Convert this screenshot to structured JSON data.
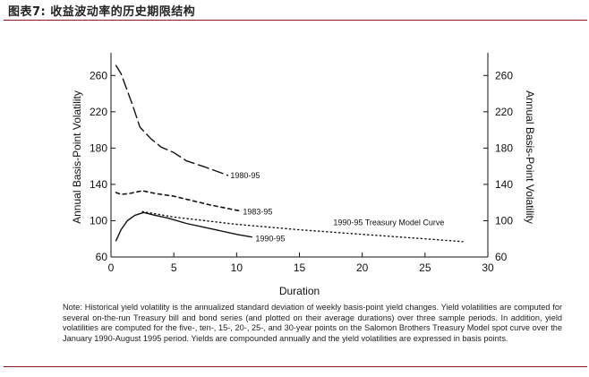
{
  "figure": {
    "title": "图表7:   收益波动率的历史期限结构",
    "note": "Note: Historical yield volatility is the annualized standard deviation of weekly basis-point yield changes. Yield volatilities are computed for several on-the-run Treasury bill and bond series (and plotted on their average durations) over three sample periods. In addition, yield volatilities are computed for the five-, ten-, 15-, 20-, 25-, and 30-year points on the Salomon Brothers Treasury Model spot curve over the January 1990-August 1995 period. Yields are compounded annually and the yield volatilities are expressed in basis points."
  },
  "chart_data": {
    "type": "line",
    "xlabel": "Duration",
    "ylabel_left": "Annual Basis-Point Volatility",
    "ylabel_right": "Annual Basis-Point Volatility",
    "xlim": [
      0,
      30
    ],
    "ylim": [
      60,
      280
    ],
    "x_ticks": [
      0,
      5,
      10,
      15,
      20,
      25,
      30
    ],
    "y_ticks": [
      60,
      100,
      140,
      180,
      220,
      260
    ],
    "series": [
      {
        "name": "1980-95",
        "style": "long-dash",
        "x": [
          0.4,
          0.8,
          1.2,
          1.7,
          2.3,
          3.2,
          4.0,
          5.0,
          6.0,
          7.5,
          9.3
        ],
        "y": [
          271,
          262,
          247,
          228,
          203,
          190,
          181,
          175,
          166,
          159,
          150
        ]
      },
      {
        "name": "1983-95",
        "style": "short-dash",
        "x": [
          0.4,
          0.8,
          1.5,
          2.5,
          3.5,
          5.0,
          6.5,
          8.0,
          10.2
        ],
        "y": [
          131,
          129,
          130,
          133,
          130,
          127,
          122,
          117,
          111
        ]
      },
      {
        "name": "1990-95",
        "style": "solid",
        "x": [
          0.4,
          0.8,
          1.3,
          1.9,
          2.6,
          3.5,
          4.5,
          6.0,
          8.0,
          10.0,
          11.2
        ],
        "y": [
          78,
          90,
          100,
          106,
          109,
          106,
          103,
          97,
          91,
          85,
          82
        ]
      },
      {
        "name": "1990-95 Treasury Model Curve",
        "style": "dotted",
        "x": [
          2.5,
          5,
          10,
          15,
          20,
          25,
          28
        ],
        "y": [
          110,
          104,
          96,
          90,
          85,
          80,
          77
        ]
      }
    ],
    "annotations": [
      {
        "label": "1980-95",
        "x": 9.5,
        "y": 150
      },
      {
        "label": "1983-95",
        "x": 10.5,
        "y": 110
      },
      {
        "label": "1990-95",
        "x": 11.5,
        "y": 80
      },
      {
        "label": "1990-95 Treasury Model Curve",
        "x": 17.7,
        "y": 98
      }
    ]
  }
}
